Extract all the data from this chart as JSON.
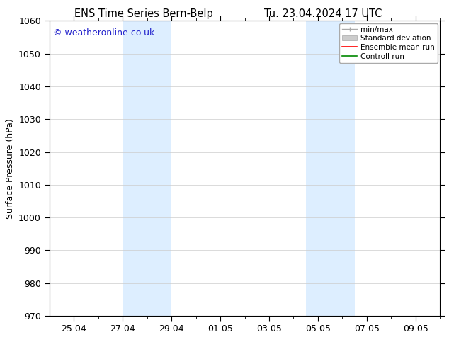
{
  "title_left": "ENS Time Series Bern-Belp",
  "title_right": "Tu. 23.04.2024 17 UTC",
  "ylabel": "Surface Pressure (hPa)",
  "ylim": [
    970,
    1060
  ],
  "yticks": [
    970,
    980,
    990,
    1000,
    1010,
    1020,
    1030,
    1040,
    1050,
    1060
  ],
  "background_color": "#ffffff",
  "plot_bg_color": "#ffffff",
  "watermark_text": "© weatheronline.co.uk",
  "watermark_color": "#2222cc",
  "shaded_band_1": [
    4.0,
    6.0
  ],
  "shaded_band_2": [
    11.5,
    13.5
  ],
  "shaded_color": "#ddeeff",
  "xtick_labels": [
    "25.04",
    "27.04",
    "29.04",
    "01.05",
    "03.05",
    "05.05",
    "07.05",
    "09.05"
  ],
  "xtick_positions": [
    2,
    4,
    6,
    8,
    10,
    12,
    14,
    16
  ],
  "xlim": [
    1.0,
    17.0
  ],
  "legend_labels": [
    "min/max",
    "Standard deviation",
    "Ensemble mean run",
    "Controll run"
  ],
  "legend_colors_line": [
    "#aaaaaa",
    "#bbbbbb",
    "#ff0000",
    "#008800"
  ],
  "grid_color": "#cccccc",
  "font_size": 9,
  "title_font_size": 10.5
}
